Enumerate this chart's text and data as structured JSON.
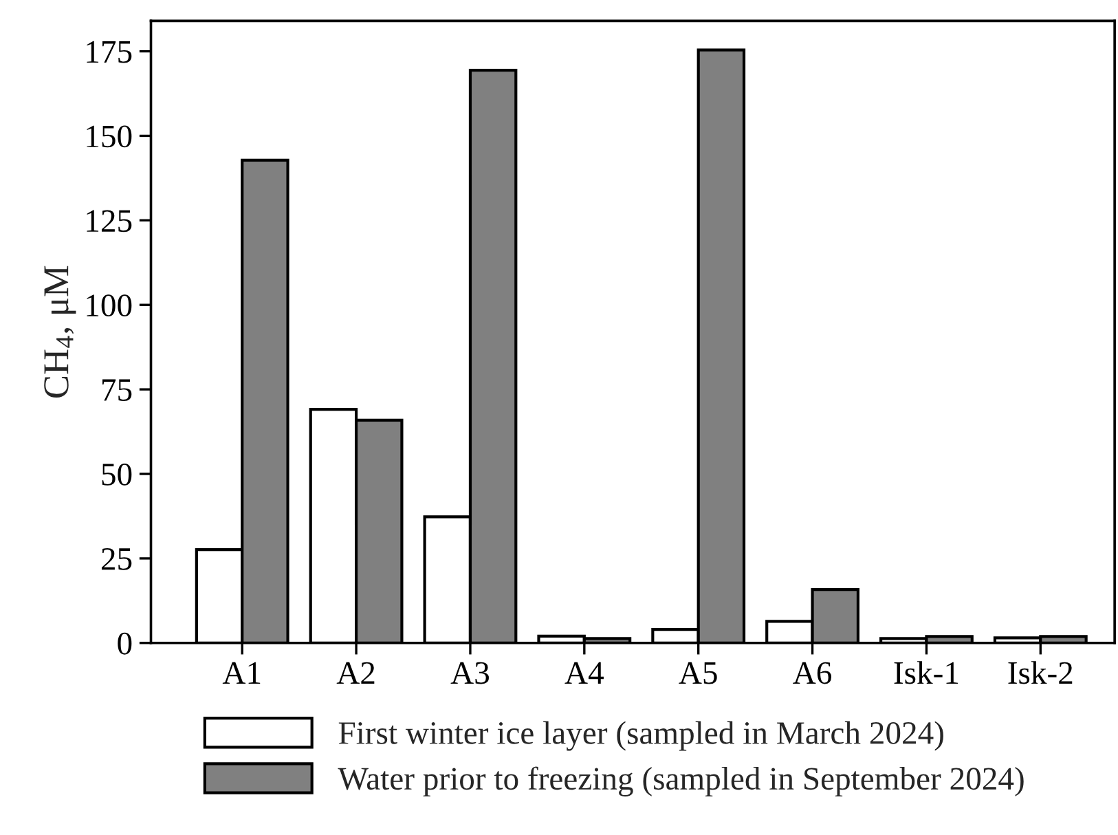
{
  "chart_data": {
    "type": "bar",
    "ylabel": "CH$_{4}$, μM",
    "categories": [
      "A1",
      "A2",
      "A3",
      "A4",
      "A5",
      "A6",
      "Isk-1",
      "Isk-2"
    ],
    "series": [
      {
        "name": "First winter ice layer (sampled in March 2024)",
        "color": "#ffffff",
        "values": [
          27.6,
          69.1,
          37.3,
          2.0,
          4.0,
          6.4,
          1.3,
          1.5
        ]
      },
      {
        "name": "Water prior to freezing (sampled in September 2024)",
        "color": "#808080",
        "values": [
          142.8,
          65.9,
          169.4,
          1.3,
          175.4,
          15.8,
          1.9,
          1.9
        ]
      }
    ],
    "ylim": [
      0,
      184
    ],
    "yticks": [
      0,
      25,
      50,
      75,
      100,
      125,
      150,
      175
    ],
    "grid": false,
    "legend": "bottom"
  }
}
